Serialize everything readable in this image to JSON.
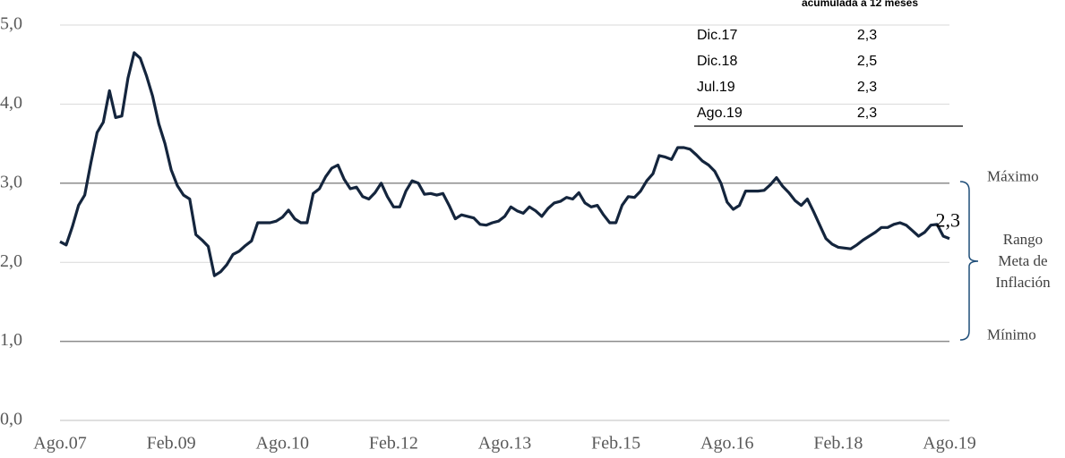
{
  "chart_data": {
    "type": "line",
    "categories": [
      "Ago.07",
      null,
      null,
      null,
      null,
      null,
      null,
      null,
      null,
      null,
      null,
      null,
      null,
      null,
      null,
      null,
      null,
      null,
      "Feb.09",
      null,
      null,
      null,
      null,
      null,
      null,
      null,
      null,
      null,
      null,
      null,
      null,
      null,
      null,
      null,
      null,
      null,
      "Ago.10",
      null,
      null,
      null,
      null,
      null,
      null,
      null,
      null,
      null,
      null,
      null,
      null,
      null,
      null,
      null,
      null,
      null,
      "Feb.12",
      null,
      null,
      null,
      null,
      null,
      null,
      null,
      null,
      null,
      null,
      null,
      null,
      null,
      null,
      null,
      null,
      null,
      "Ago.13",
      null,
      null,
      null,
      null,
      null,
      null,
      null,
      null,
      null,
      null,
      null,
      null,
      null,
      null,
      null,
      null,
      null,
      "Feb.15",
      null,
      null,
      null,
      null,
      null,
      null,
      null,
      null,
      null,
      null,
      null,
      null,
      null,
      null,
      null,
      null,
      null,
      "Ago.16",
      null,
      null,
      null,
      null,
      null,
      null,
      null,
      null,
      null,
      null,
      null,
      null,
      null,
      null,
      null,
      null,
      null,
      "Feb.18",
      null,
      null,
      null,
      null,
      null,
      null,
      null,
      null,
      null,
      null,
      null,
      null,
      null,
      null,
      null,
      null,
      null,
      "Ago.19"
    ],
    "values": [
      2.26,
      2.22,
      2.45,
      2.72,
      2.85,
      3.26,
      3.64,
      3.77,
      4.17,
      3.83,
      3.85,
      4.33,
      4.65,
      4.58,
      4.36,
      4.1,
      3.75,
      3.5,
      3.17,
      2.97,
      2.85,
      2.8,
      2.35,
      2.28,
      2.2,
      1.83,
      1.88,
      1.97,
      2.1,
      2.14,
      2.21,
      2.27,
      2.5,
      2.5,
      2.5,
      2.52,
      2.57,
      2.66,
      2.55,
      2.5,
      2.5,
      2.87,
      2.93,
      3.08,
      3.19,
      3.23,
      3.05,
      2.93,
      2.95,
      2.83,
      2.8,
      2.88,
      3.0,
      2.83,
      2.7,
      2.7,
      2.9,
      3.03,
      3.0,
      2.86,
      2.87,
      2.85,
      2.87,
      2.72,
      2.55,
      2.6,
      2.58,
      2.56,
      2.48,
      2.47,
      2.5,
      2.52,
      2.58,
      2.7,
      2.65,
      2.62,
      2.7,
      2.65,
      2.58,
      2.68,
      2.75,
      2.77,
      2.82,
      2.8,
      2.88,
      2.75,
      2.7,
      2.72,
      2.6,
      2.5,
      2.5,
      2.72,
      2.83,
      2.82,
      2.9,
      3.03,
      3.12,
      3.35,
      3.33,
      3.3,
      3.45,
      3.45,
      3.43,
      3.36,
      3.28,
      3.23,
      3.15,
      3.0,
      2.76,
      2.67,
      2.72,
      2.9,
      2.9,
      2.9,
      2.91,
      2.98,
      3.07,
      2.96,
      2.88,
      2.78,
      2.72,
      2.8,
      2.64,
      2.47,
      2.3,
      2.23,
      2.19,
      2.18,
      2.17,
      2.22,
      2.28,
      2.33,
      2.38,
      2.44,
      2.44,
      2.48,
      2.5,
      2.47,
      2.4,
      2.33,
      2.38,
      2.47,
      2.48,
      2.33,
      2.3
    ],
    "color": "#14253d",
    "end_label": "2,3",
    "ylim": [
      0,
      5
    ],
    "yticks": [
      {
        "value": 0,
        "label": "0,0"
      },
      {
        "value": 1,
        "label": "1,0"
      },
      {
        "value": 2,
        "label": "2,0"
      },
      {
        "value": 3,
        "label": "3,0"
      },
      {
        "value": 4,
        "label": "4,0"
      },
      {
        "value": 5,
        "label": "5,0"
      }
    ],
    "grid": true,
    "annotations": [
      {
        "text": "Máximo",
        "value": 3,
        "line": true
      },
      {
        "lines": [
          "Rango",
          "Meta de",
          "Inflación"
        ],
        "value": 2
      },
      {
        "text": "Mínimo",
        "value": 1,
        "line": true
      }
    ]
  },
  "table": {
    "header": "acumulada a 12 meses",
    "rows": [
      [
        "Dic.17",
        "2,3"
      ],
      [
        "Dic.18",
        "2,5"
      ],
      [
        "Jul.19",
        "2,3"
      ],
      [
        "Ago.19",
        "2,3"
      ]
    ]
  }
}
